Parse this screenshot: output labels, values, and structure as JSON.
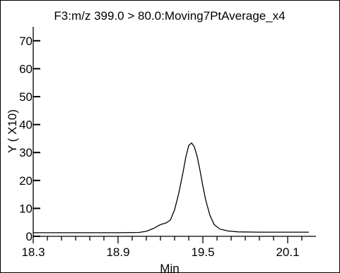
{
  "chart_data": {
    "type": "line",
    "title": "F3:m/z 399.0 > 80.0:Moving7PtAverage_x4",
    "xlabel": "Min",
    "ylabel": "Y ( X10)",
    "xlim": [
      18.3,
      20.3
    ],
    "ylim": [
      0,
      75
    ],
    "x_ticks": [
      {
        "value": 18.3,
        "label": "18.3"
      },
      {
        "value": 18.9,
        "label": "18.9"
      },
      {
        "value": 19.5,
        "label": "19.5"
      },
      {
        "value": 20.1,
        "label": "20.1"
      }
    ],
    "x_minor_step": 0.1,
    "y_ticks": [
      {
        "value": 0,
        "label": "0"
      },
      {
        "value": 10,
        "label": "10"
      },
      {
        "value": 20,
        "label": "20"
      },
      {
        "value": 30,
        "label": "30"
      },
      {
        "value": 40,
        "label": "40"
      },
      {
        "value": 50,
        "label": "50"
      },
      {
        "value": 60,
        "label": "60"
      },
      {
        "value": 70,
        "label": "70"
      }
    ],
    "grid": false,
    "line_color": "#000000",
    "series": [
      {
        "x": [
          18.3,
          18.5,
          18.7,
          18.9,
          19.05,
          19.1,
          19.15,
          19.2,
          19.24,
          19.27,
          19.3,
          19.33,
          19.36,
          19.38,
          19.4,
          19.42,
          19.44,
          19.46,
          19.48,
          19.5,
          19.52,
          19.55,
          19.58,
          19.62,
          19.68,
          19.75,
          19.9,
          20.1,
          20.25
        ],
        "y": [
          1.3,
          1.3,
          1.3,
          1.3,
          1.4,
          1.8,
          2.8,
          4.2,
          4.8,
          5.8,
          9.5,
          15.5,
          23.0,
          28.5,
          32.5,
          33.4,
          32.0,
          28.5,
          23.5,
          18.0,
          13.0,
          7.5,
          4.2,
          2.6,
          1.9,
          1.6,
          1.5,
          1.5,
          1.5
        ]
      }
    ]
  }
}
